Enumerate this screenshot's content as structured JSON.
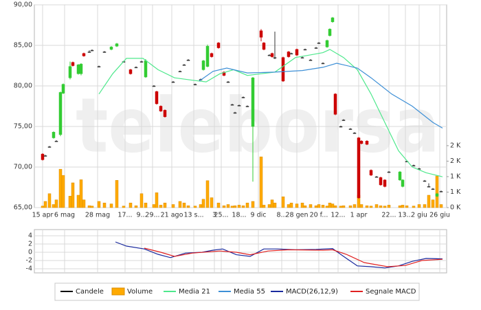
{
  "watermark": "teleborsa",
  "chart_data": [
    {
      "type": "candlestick",
      "xlim": [
        0,
        300
      ],
      "xticks": [
        {
          "value": 6,
          "label": "15 apr"
        },
        {
          "value": 22,
          "label": "6 mag"
        },
        {
          "value": 46,
          "label": "28 mag"
        },
        {
          "value": 66,
          "label": "17..."
        },
        {
          "value": 78,
          "label": "9..."
        },
        {
          "value": 86,
          "label": "29..."
        },
        {
          "value": 100,
          "label": "21 ago"
        },
        {
          "value": 116,
          "label": "13 s..."
        },
        {
          "value": 131,
          "label": "3"
        },
        {
          "value": 136,
          "label": "25..."
        },
        {
          "value": 149,
          "label": "18..."
        },
        {
          "value": 163,
          "label": "9 dic"
        },
        {
          "value": 180,
          "label": "8..."
        },
        {
          "value": 191,
          "label": "28 gen"
        },
        {
          "value": 207,
          "label": "20 f..."
        },
        {
          "value": 221,
          "label": "12..."
        },
        {
          "value": 236,
          "label": "1 apr"
        },
        {
          "value": 258,
          "label": "22..."
        },
        {
          "value": 270,
          "label": "13..."
        },
        {
          "value": 280,
          "label": "2 giu"
        },
        {
          "value": 295,
          "label": "26 giu"
        }
      ],
      "ylim": [
        65,
        90
      ],
      "yticks": [
        {
          "value": 90,
          "label": "90,00"
        },
        {
          "value": 85,
          "label": "85,00"
        },
        {
          "value": 80,
          "label": "80,00"
        },
        {
          "value": 75,
          "label": "75,00"
        },
        {
          "value": 70,
          "label": "70,00"
        },
        {
          "value": 65,
          "label": "65,00"
        }
      ],
      "y2lim": [
        0,
        6550
      ],
      "y2ticks": [
        {
          "value": 0,
          "label": "0 K"
        },
        {
          "value": 500,
          "label": "1 K"
        },
        {
          "value": 1000,
          "label": "1 K"
        },
        {
          "value": 1500,
          "label": "2 K"
        },
        {
          "value": 2000,
          "label": "2 K"
        }
      ],
      "grid": true,
      "candles": {
        "name": "Candele",
        "color": "#000000",
        "up_color": "#33cc33",
        "down_color": "#cc0000",
        "flat_color": "#333333",
        "x": [
          6,
          8,
          11,
          14,
          16,
          19,
          21,
          26,
          28,
          32,
          34,
          36,
          40,
          42,
          47,
          51,
          56,
          60,
          65,
          70,
          74,
          78,
          81,
          87,
          89,
          92,
          95,
          101,
          106,
          109,
          112,
          117,
          121,
          123,
          126,
          129,
          134,
          138,
          141,
          144,
          146,
          149,
          152,
          155,
          159,
          165,
          167,
          171,
          173,
          175,
          181,
          185,
          187,
          191,
          195,
          197,
          201,
          205,
          207,
          210,
          213,
          215,
          217,
          219,
          223,
          225,
          230,
          233,
          236,
          238,
          242,
          245,
          249,
          252,
          255,
          258,
          266,
          268,
          271,
          276,
          280,
          284,
          287,
          290,
          293,
          296
        ],
        "open": [
          71.6,
          71.4,
          72.5,
          73.6,
          73.2,
          74.0,
          79.1,
          81.0,
          82.9,
          81.5,
          81.5,
          84.0,
          84.2,
          84.4,
          82.4,
          84.2,
          84.5,
          84.9,
          83.0,
          82.0,
          82.3,
          83.0,
          81.1,
          80.0,
          79.3,
          77.5,
          77.0,
          80.5,
          81.8,
          82.6,
          83.2,
          80.2,
          80.8,
          82.0,
          82.4,
          84.0,
          85.3,
          81.7,
          80.5,
          77.7,
          76.7,
          77.6,
          78.6,
          77.5,
          75.0,
          86.8,
          85.3,
          83.8,
          84.0,
          83.5,
          83.5,
          84.2,
          84.0,
          84.5,
          83.5,
          84.5,
          83.2,
          84.7,
          85.3,
          82.8,
          84.8,
          86.2,
          87.9,
          79.0,
          75.0,
          75.8,
          74.7,
          74.2,
          73.6,
          73.2,
          73.2,
          69.6,
          68.8,
          68.7,
          68.4,
          69.4,
          68.4,
          67.6,
          70.7,
          70.2,
          69.8,
          68.3,
          67.6,
          67.3,
          66.4,
          67.0
        ],
        "high": [
          71.7,
          71.5,
          72.6,
          74.4,
          73.3,
          79.3,
          80.3,
          83.0,
          83.0,
          82.7,
          82.8,
          84.1,
          84.4,
          84.5,
          82.5,
          84.3,
          84.9,
          85.3,
          83.1,
          82.1,
          82.4,
          83.1,
          83.3,
          80.1,
          79.4,
          77.6,
          77.1,
          80.6,
          81.9,
          82.7,
          83.3,
          80.3,
          80.9,
          83.2,
          85.1,
          84.1,
          85.4,
          81.8,
          80.6,
          77.8,
          76.8,
          77.7,
          78.7,
          77.6,
          81.1,
          87.0,
          85.4,
          83.9,
          84.1,
          86.7,
          83.6,
          84.3,
          84.1,
          84.6,
          83.6,
          84.6,
          83.3,
          84.8,
          85.4,
          82.9,
          85.7,
          87.1,
          88.5,
          79.1,
          75.1,
          75.9,
          74.8,
          74.3,
          73.7,
          73.3,
          73.3,
          69.7,
          68.9,
          68.8,
          68.5,
          69.5,
          69.5,
          68.5,
          70.8,
          70.3,
          69.9,
          68.4,
          68.0,
          67.4,
          66.8,
          67.1
        ],
        "low": [
          70.8,
          71.3,
          72.4,
          73.5,
          73.1,
          73.8,
          79.0,
          80.8,
          82.4,
          81.4,
          81.3,
          83.6,
          84.1,
          84.3,
          82.3,
          84.1,
          84.4,
          84.8,
          82.9,
          81.4,
          82.2,
          82.9,
          81.0,
          79.9,
          77.7,
          76.8,
          76.1,
          80.4,
          81.7,
          82.5,
          83.1,
          80.1,
          80.7,
          81.9,
          82.3,
          83.5,
          84.6,
          81.2,
          80.4,
          77.6,
          76.6,
          77.5,
          78.5,
          77.4,
          68.2,
          85.5,
          84.4,
          83.7,
          83.5,
          83.3,
          80.5,
          83.5,
          83.9,
          83.7,
          83.4,
          84.4,
          83.1,
          84.6,
          85.2,
          82.7,
          84.7,
          86.1,
          87.8,
          76.4,
          74.9,
          75.7,
          74.6,
          74.1,
          66.1,
          72.8,
          72.7,
          68.9,
          68.7,
          67.7,
          67.5,
          69.3,
          68.3,
          67.5,
          70.6,
          70.1,
          69.7,
          68.2,
          67.5,
          67.2,
          66.3,
          66.9
        ],
        "close": [
          70.9,
          71.4,
          72.5,
          74.3,
          73.2,
          79.2,
          80.2,
          82.4,
          82.5,
          82.6,
          82.7,
          83.7,
          84.2,
          84.4,
          82.4,
          84.2,
          84.8,
          85.2,
          83.0,
          81.5,
          82.3,
          83.0,
          83.1,
          80.0,
          77.8,
          76.9,
          76.2,
          80.5,
          81.8,
          82.6,
          83.2,
          80.2,
          80.8,
          83.1,
          84.9,
          83.6,
          84.7,
          81.3,
          80.5,
          77.7,
          76.7,
          77.6,
          78.6,
          77.5,
          81.0,
          86.0,
          84.5,
          83.8,
          83.6,
          83.5,
          80.6,
          83.6,
          84.0,
          83.8,
          83.5,
          84.5,
          83.2,
          84.7,
          85.3,
          82.8,
          85.6,
          87.0,
          88.4,
          76.5,
          75.0,
          75.8,
          74.7,
          74.2,
          66.2,
          72.9,
          72.8,
          69.0,
          68.8,
          67.8,
          67.6,
          69.4,
          69.4,
          68.4,
          70.7,
          70.2,
          69.8,
          68.3,
          67.6,
          67.3,
          66.7,
          67.0
        ]
      },
      "volume": {
        "name": "Volume",
        "color": "#ffaa00",
        "axis": "y2",
        "values": [
          50,
          200,
          450,
          100,
          250,
          1240,
          1040,
          370,
          800,
          400,
          900,
          250,
          60,
          50,
          200,
          150,
          120,
          880,
          50,
          150,
          60,
          450,
          150,
          100,
          480,
          80,
          150,
          100,
          200,
          150,
          60,
          50,
          100,
          270,
          870,
          320,
          150,
          60,
          100,
          50,
          60,
          80,
          60,
          150,
          200,
          1640,
          80,
          100,
          250,
          150,
          350,
          100,
          150,
          120,
          150,
          60,
          100,
          60,
          100,
          80,
          50,
          150,
          120,
          60,
          50,
          60,
          60,
          100,
          400,
          100,
          60,
          50,
          100,
          60,
          50,
          80,
          60,
          80,
          60,
          50,
          100,
          100,
          400,
          250,
          1020,
          100
        ]
      },
      "series": [
        {
          "name": "Media 21",
          "color": "#4ee88c",
          "x": [
            47,
            57,
            67,
            79,
            90,
            102,
            115,
            125,
            135,
            145,
            155,
            165,
            175,
            190,
            200,
            210,
            215,
            225,
            235,
            245,
            255,
            265,
            275,
            285,
            297
          ],
          "values": [
            79.0,
            81.5,
            83.4,
            83.4,
            82.0,
            81.0,
            80.7,
            80.5,
            81.5,
            82.0,
            81.3,
            81.5,
            81.7,
            83.5,
            83.8,
            84.1,
            84.5,
            83.5,
            82.0,
            79.0,
            75.5,
            72.0,
            70.0,
            69.3,
            68.8
          ]
        },
        {
          "name": "Media 55",
          "color": "#3d8fd6",
          "x": [
            120,
            130,
            140,
            155,
            175,
            195,
            210,
            220,
            235,
            245,
            260,
            275,
            290,
            297
          ],
          "values": [
            80.6,
            81.8,
            82.2,
            81.6,
            81.7,
            81.9,
            82.3,
            82.8,
            82.2,
            81.0,
            79.0,
            77.5,
            75.5,
            74.8
          ]
        }
      ]
    },
    {
      "type": "line",
      "xlim": [
        0,
        300
      ],
      "ylim": [
        -5,
        5
      ],
      "yticks": [
        4,
        2,
        0,
        -2,
        -4
      ],
      "grid": true,
      "series": [
        {
          "name": "MACD(26,12,9)",
          "color": "#1a2a9e",
          "x": [
            59,
            67,
            80,
            90,
            99,
            110,
            122,
            130,
            137,
            147,
            157,
            167,
            177,
            190,
            205,
            217,
            225,
            235,
            245,
            255,
            265,
            275,
            285,
            297
          ],
          "values": [
            2.5,
            1.5,
            0.8,
            -0.5,
            -1.3,
            -0.2,
            0,
            0.5,
            0.8,
            -0.6,
            -1.0,
            0.8,
            0.8,
            0.6,
            0.7,
            0.9,
            -1.0,
            -3.3,
            -3.5,
            -3.8,
            -3.3,
            -2.2,
            -1.5,
            -1.6
          ]
        },
        {
          "name": "Segnale MACD",
          "color": "#e02020",
          "x": [
            80,
            92,
            102,
            115,
            135,
            147,
            157,
            170,
            185,
            210,
            217,
            227,
            240,
            257,
            270,
            282,
            297
          ],
          "values": [
            1.0,
            0,
            -1.0,
            -0.2,
            0.3,
            0,
            -0.6,
            0.3,
            0.6,
            0.5,
            0.6,
            -0.5,
            -2.5,
            -3.5,
            -3.2,
            -2.0,
            -1.7
          ]
        }
      ]
    }
  ]
}
